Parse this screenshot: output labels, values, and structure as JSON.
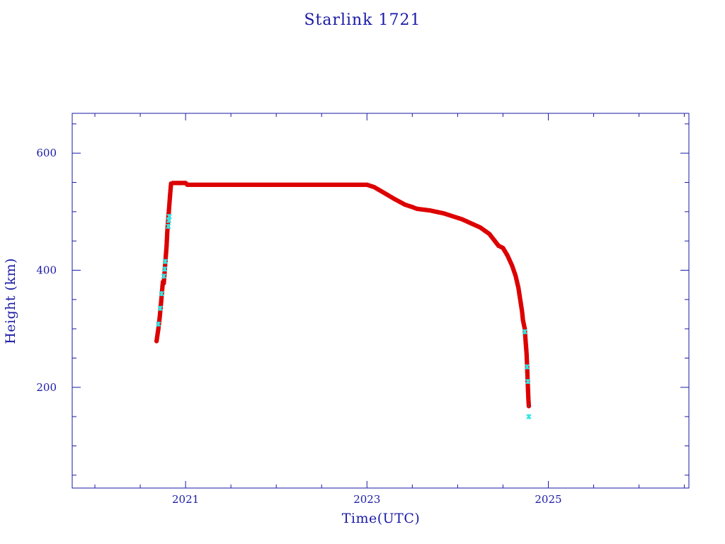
{
  "chart_data": {
    "type": "scatter",
    "title": "Starlink 1721",
    "xlabel": "Time(UTC)",
    "ylabel": "Height (km)",
    "xlim": [
      2019.75,
      2026.55
    ],
    "ylim": [
      28,
      668
    ],
    "x_ticks": [
      {
        "value": 2021,
        "label": "2021"
      },
      {
        "value": 2023,
        "label": "2023"
      },
      {
        "value": 2025,
        "label": "2025"
      }
    ],
    "y_ticks": [
      {
        "value": 200,
        "label": "200"
      },
      {
        "value": 400,
        "label": "400"
      },
      {
        "value": 600,
        "label": "600"
      }
    ],
    "colors": {
      "axis": "#1a1aa6",
      "red_series": "#dd0000",
      "cyan_series": "#33e6e6",
      "dark_markers": "#555555"
    },
    "series": [
      {
        "color": "red",
        "points": [
          [
            2020.68,
            279
          ],
          [
            2020.7,
            300
          ],
          [
            2020.715,
            320
          ],
          [
            2020.73,
            345
          ],
          [
            2020.745,
            372
          ],
          [
            2020.75,
            380
          ],
          [
            2020.76,
            378
          ],
          [
            2020.775,
            410
          ],
          [
            2020.79,
            440
          ],
          [
            2020.8,
            470
          ],
          [
            2020.815,
            500
          ],
          [
            2020.83,
            530
          ],
          [
            2020.84,
            548
          ],
          [
            2020.86,
            549
          ],
          [
            2020.9,
            549
          ],
          [
            2020.95,
            549
          ],
          [
            2021.0,
            549
          ],
          [
            2021.02,
            546
          ],
          [
            2021.2,
            546
          ],
          [
            2021.5,
            546
          ],
          [
            2021.8,
            546
          ],
          [
            2022.0,
            546
          ],
          [
            2022.3,
            546
          ],
          [
            2022.6,
            546
          ],
          [
            2022.9,
            546
          ],
          [
            2023.0,
            546
          ],
          [
            2023.08,
            542
          ],
          [
            2023.18,
            533
          ],
          [
            2023.3,
            522
          ],
          [
            2023.42,
            512
          ],
          [
            2023.5,
            508
          ],
          [
            2023.55,
            505
          ],
          [
            2023.7,
            502
          ],
          [
            2023.85,
            497
          ],
          [
            2023.95,
            492
          ],
          [
            2024.05,
            487
          ],
          [
            2024.15,
            480
          ],
          [
            2024.25,
            473
          ],
          [
            2024.35,
            462
          ],
          [
            2024.4,
            452
          ],
          [
            2024.45,
            442
          ],
          [
            2024.5,
            438
          ],
          [
            2024.55,
            425
          ],
          [
            2024.6,
            408
          ],
          [
            2024.64,
            390
          ],
          [
            2024.67,
            370
          ],
          [
            2024.69,
            350
          ],
          [
            2024.71,
            330
          ],
          [
            2024.72,
            315
          ],
          [
            2024.74,
            300
          ],
          [
            2024.75,
            278
          ],
          [
            2024.76,
            258
          ],
          [
            2024.765,
            240
          ],
          [
            2024.77,
            220
          ],
          [
            2024.775,
            200
          ],
          [
            2024.78,
            180
          ],
          [
            2024.785,
            168
          ]
        ]
      },
      {
        "color": "cyan",
        "points": [
          [
            2020.7,
            308
          ],
          [
            2020.72,
            335
          ],
          [
            2020.735,
            360
          ],
          [
            2020.76,
            390
          ],
          [
            2020.77,
            402
          ],
          [
            2020.775,
            415
          ],
          [
            2020.81,
            475
          ],
          [
            2020.815,
            485
          ],
          [
            2020.82,
            492
          ],
          [
            2024.74,
            295
          ],
          [
            2024.765,
            235
          ],
          [
            2024.775,
            210
          ],
          [
            2024.785,
            150
          ]
        ]
      }
    ]
  }
}
